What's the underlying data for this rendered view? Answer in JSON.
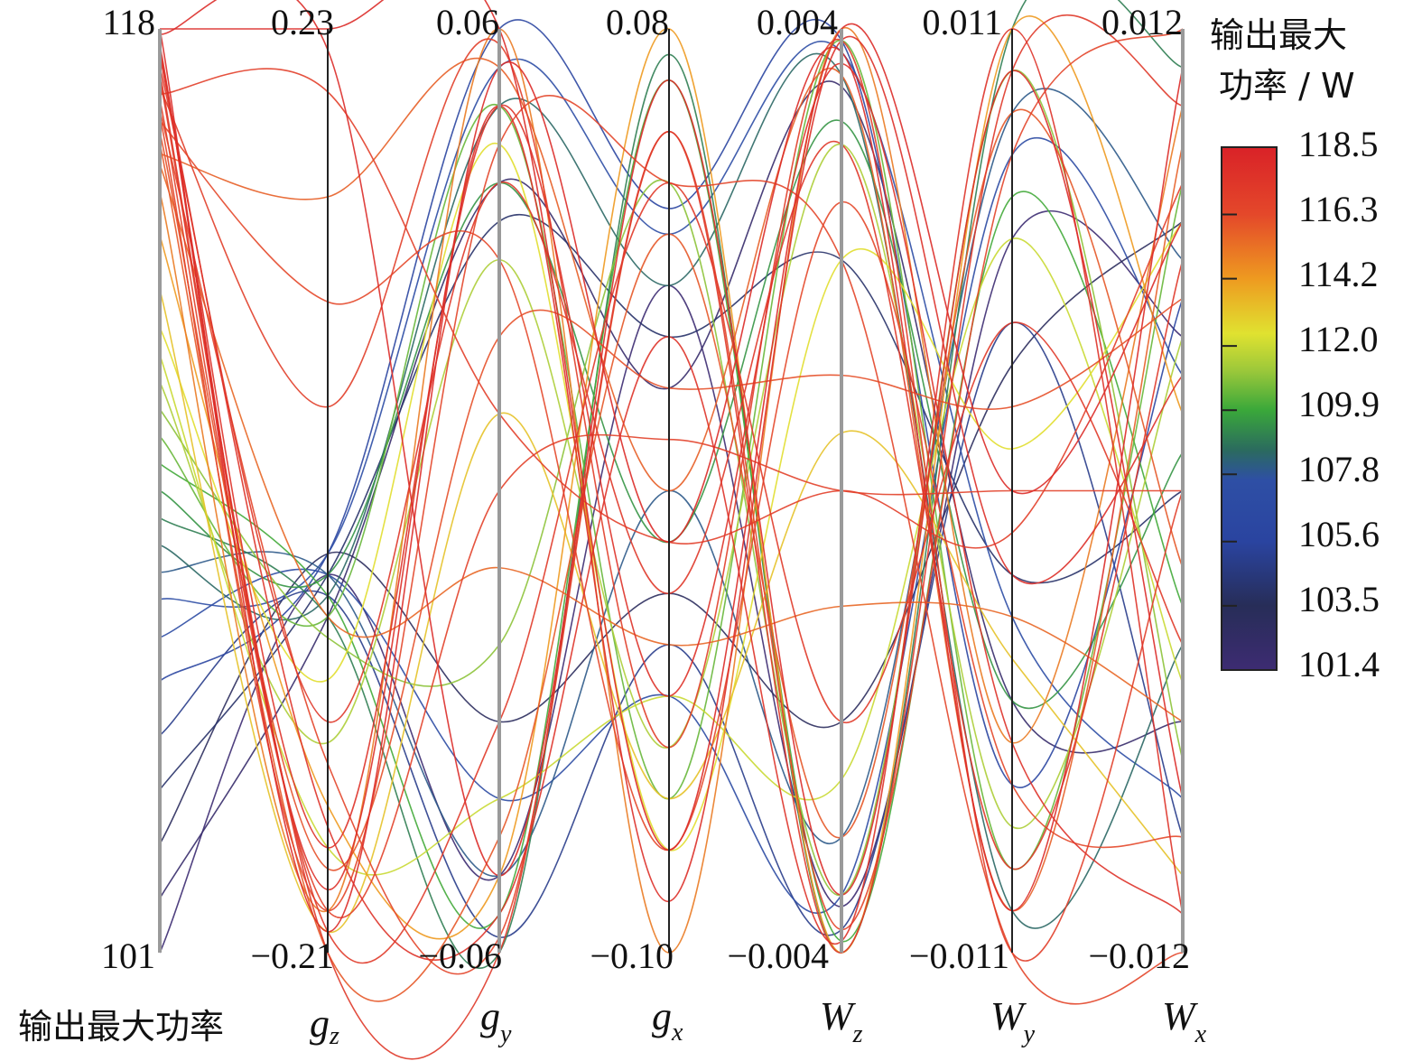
{
  "chart_data": {
    "type": "parallel-coordinates",
    "axes": [
      {
        "name": "输出最大功率",
        "sub": "",
        "max_label": "118",
        "min_label": "101",
        "range": [
          101,
          118
        ]
      },
      {
        "name": "g",
        "sub": "z",
        "max_label": "0.23",
        "min_label": "−0.21",
        "range": [
          -0.21,
          0.23
        ]
      },
      {
        "name": "g",
        "sub": "y",
        "max_label": "0.06",
        "min_label": "−0.06",
        "range": [
          -0.06,
          0.06
        ]
      },
      {
        "name": "g",
        "sub": "x",
        "max_label": "0.08",
        "min_label": "−0.10",
        "range": [
          -0.1,
          0.08
        ]
      },
      {
        "name": "W",
        "sub": "z",
        "max_label": "0.004",
        "min_label": "−0.004",
        "range": [
          -0.004,
          0.004
        ]
      },
      {
        "name": "W",
        "sub": "y",
        "max_label": "0.011",
        "min_label": "−0.011",
        "range": [
          -0.011,
          0.011
        ]
      },
      {
        "name": "W",
        "sub": "x",
        "max_label": "0.012",
        "min_label": "−0.012",
        "range": [
          -0.012,
          0.012
        ]
      }
    ],
    "color_by": "输出最大功率",
    "colorbar": {
      "title_line1": "输出最大",
      "title_line2": "功率 / W",
      "ticks": [
        "118.5",
        "116.3",
        "114.2",
        "112.0",
        "109.9",
        "107.8",
        "105.6",
        "103.5",
        "101.4"
      ],
      "range": [
        101.4,
        118.5
      ],
      "colormap": [
        {
          "v": 101.4,
          "c": "#3d2c72"
        },
        {
          "v": 103.5,
          "c": "#272d58"
        },
        {
          "v": 105.6,
          "c": "#2a44a0"
        },
        {
          "v": 107.6,
          "c": "#2e4fa5"
        },
        {
          "v": 108.6,
          "c": "#2b6b5e"
        },
        {
          "v": 109.9,
          "c": "#3aa83a"
        },
        {
          "v": 111.2,
          "c": "#9cc83a"
        },
        {
          "v": 112.4,
          "c": "#e0e230"
        },
        {
          "v": 114.2,
          "c": "#ee9a20"
        },
        {
          "v": 116.3,
          "c": "#e4482a"
        },
        {
          "v": 118.5,
          "c": "#d92228"
        }
      ]
    },
    "lines": [
      [
        118,
        -0.2,
        0.055,
        -0.02,
        0.0038,
        -0.01,
        0.011
      ],
      [
        117.9,
        0.22,
        -0.05,
        0.07,
        -0.0035,
        0.01,
        -0.008
      ],
      [
        117.7,
        -0.18,
        0.05,
        -0.09,
        0.0039,
        -0.002,
        0.003
      ],
      [
        117.5,
        -0.15,
        -0.055,
        0.02,
        -0.0039,
        0.011,
        -0.011
      ],
      [
        117.3,
        -0.1,
        0.04,
        -0.03,
        0.003,
        -0.009,
        0.006
      ],
      [
        117.1,
        -0.2,
        -0.03,
        0.05,
        -0.002,
        0.004,
        -0.004
      ],
      [
        116.9,
        0.05,
        0.058,
        -0.06,
        0.0039,
        -0.011,
        0.0
      ],
      [
        116.7,
        -0.19,
        0.0,
        0.0,
        0.0,
        0.0,
        0.0
      ],
      [
        116.5,
        -0.12,
        -0.058,
        0.06,
        -0.0038,
        0.008,
        0.012
      ],
      [
        116.3,
        0.1,
        0.03,
        -0.08,
        0.0025,
        -0.007,
        -0.009
      ],
      [
        116.1,
        -0.17,
        0.02,
        0.01,
        0.001,
        0.002,
        0.005
      ],
      [
        115.9,
        -0.21,
        -0.045,
        0.04,
        -0.003,
        0.009,
        -0.002
      ],
      [
        115.7,
        0.15,
        0.055,
        -0.01,
        0.0036,
        -0.01,
        0.009
      ],
      [
        115.5,
        -0.05,
        -0.01,
        -0.04,
        -0.001,
        -0.003,
        -0.006
      ],
      [
        117.6,
        -0.16,
        0.05,
        -0.05,
        0.0037,
        -0.006,
        -0.011
      ],
      [
        117.2,
        -0.21,
        -0.06,
        0.06,
        -0.004,
        0.01,
        0.01
      ],
      [
        116.8,
        0.2,
        0.01,
        -0.02,
        0.0,
        -0.001,
        0.008
      ],
      [
        116.4,
        -0.19,
        0.045,
        0.05,
        0.002,
        -0.011,
        -0.012
      ],
      [
        118,
        0.23,
        0.06,
        -0.08,
        0.004,
        0.0,
        0.007
      ],
      [
        115.0,
        -0.19,
        0.06,
        -0.1,
        0.004,
        -0.006,
        0.01
      ],
      [
        114.2,
        -0.14,
        -0.05,
        0.08,
        -0.004,
        0.011,
        0.002
      ],
      [
        113.2,
        -0.2,
        0.01,
        -0.07,
        0.0005,
        -0.004,
        -0.01
      ],
      [
        112.5,
        -0.08,
        0.045,
        -0.08,
        0.002,
        0.001,
        0.007
      ],
      [
        112.0,
        -0.16,
        -0.04,
        -0.05,
        -0.0025,
        0.006,
        -0.005
      ],
      [
        111.5,
        -0.11,
        0.03,
        -0.06,
        0.003,
        -0.008,
        0.004
      ],
      [
        111.0,
        -0.06,
        -0.02,
        0.05,
        -0.0035,
        0.01,
        -0.007
      ],
      [
        110.5,
        -0.05,
        0.05,
        -0.07,
        0.0039,
        -0.009,
        0.008
      ],
      [
        110.0,
        -0.04,
        -0.055,
        0.07,
        -0.0039,
        0.007,
        -0.003
      ],
      [
        109.5,
        -0.03,
        0.04,
        -0.02,
        0.0032,
        -0.005,
        0.001
      ],
      [
        109.0,
        -0.05,
        -0.06,
        0.075,
        -0.004,
        0.011,
        0.011
      ],
      [
        108.5,
        -0.04,
        0.05,
        0.03,
        0.0036,
        -0.01,
        -0.004
      ],
      [
        108.0,
        -0.03,
        -0.05,
        -0.01,
        -0.003,
        0.009,
        0.006
      ],
      [
        107.5,
        -0.02,
        0.055,
        0.04,
        0.0038,
        -0.003,
        -0.008
      ],
      [
        106.8,
        -0.03,
        -0.04,
        -0.05,
        -0.0035,
        0.008,
        0.003
      ],
      [
        106.0,
        -0.02,
        0.06,
        0.045,
        0.0039,
        -0.007,
        0.005
      ],
      [
        105.0,
        -0.04,
        -0.058,
        -0.04,
        -0.0038,
        0.004,
        -0.009
      ],
      [
        104.0,
        -0.03,
        0.035,
        0.02,
        0.002,
        -0.002,
        0.0
      ],
      [
        103.0,
        -0.02,
        -0.03,
        -0.03,
        -0.002,
        0.003,
        0.007
      ],
      [
        102.0,
        -0.05,
        0.04,
        0.01,
        0.0035,
        -0.005,
        -0.006
      ],
      [
        101.0,
        -0.03,
        -0.05,
        0.03,
        -0.0036,
        0.006,
        0.004
      ]
    ]
  }
}
